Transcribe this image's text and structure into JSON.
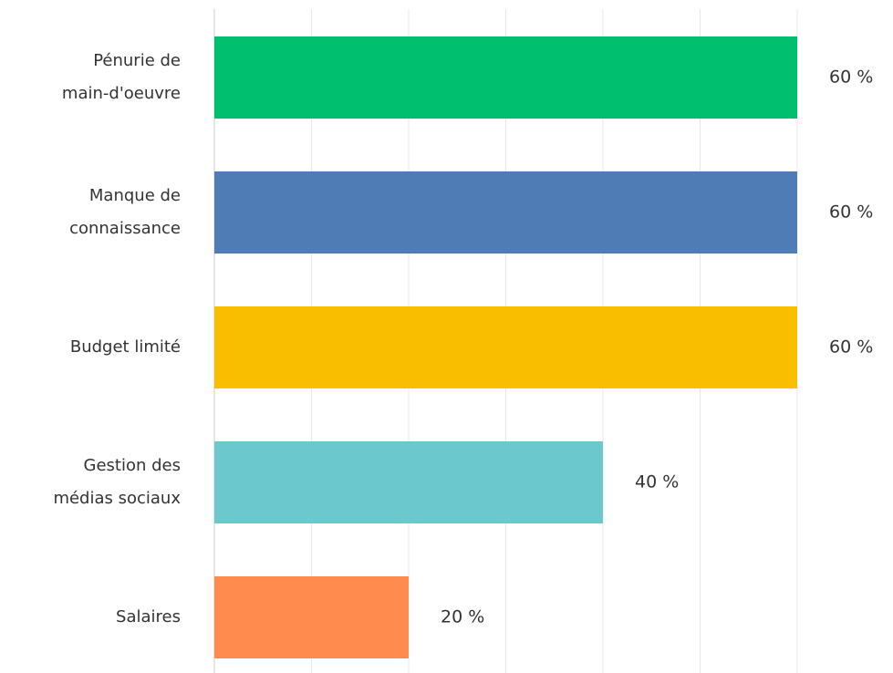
{
  "chart_data": {
    "type": "bar",
    "orientation": "horizontal",
    "categories": [
      [
        "Pénurie de",
        "main-d'oeuvre"
      ],
      [
        "Manque de",
        "connaissance"
      ],
      [
        "Budget limité"
      ],
      [
        "Gestion des",
        "médias sociaux"
      ],
      [
        "Salaires"
      ]
    ],
    "values": [
      60,
      60,
      60,
      40,
      20
    ],
    "value_labels": [
      "60 %",
      "60 %",
      "60 %",
      "40 %",
      "20 %"
    ],
    "colors": [
      "#00bf6f",
      "#507cb6",
      "#f9be00",
      "#6bc8cd",
      "#ff8b4f"
    ],
    "xlim": [
      0,
      60
    ],
    "xticks": [
      0,
      10,
      20,
      30,
      40,
      50,
      60
    ],
    "grid": true
  }
}
